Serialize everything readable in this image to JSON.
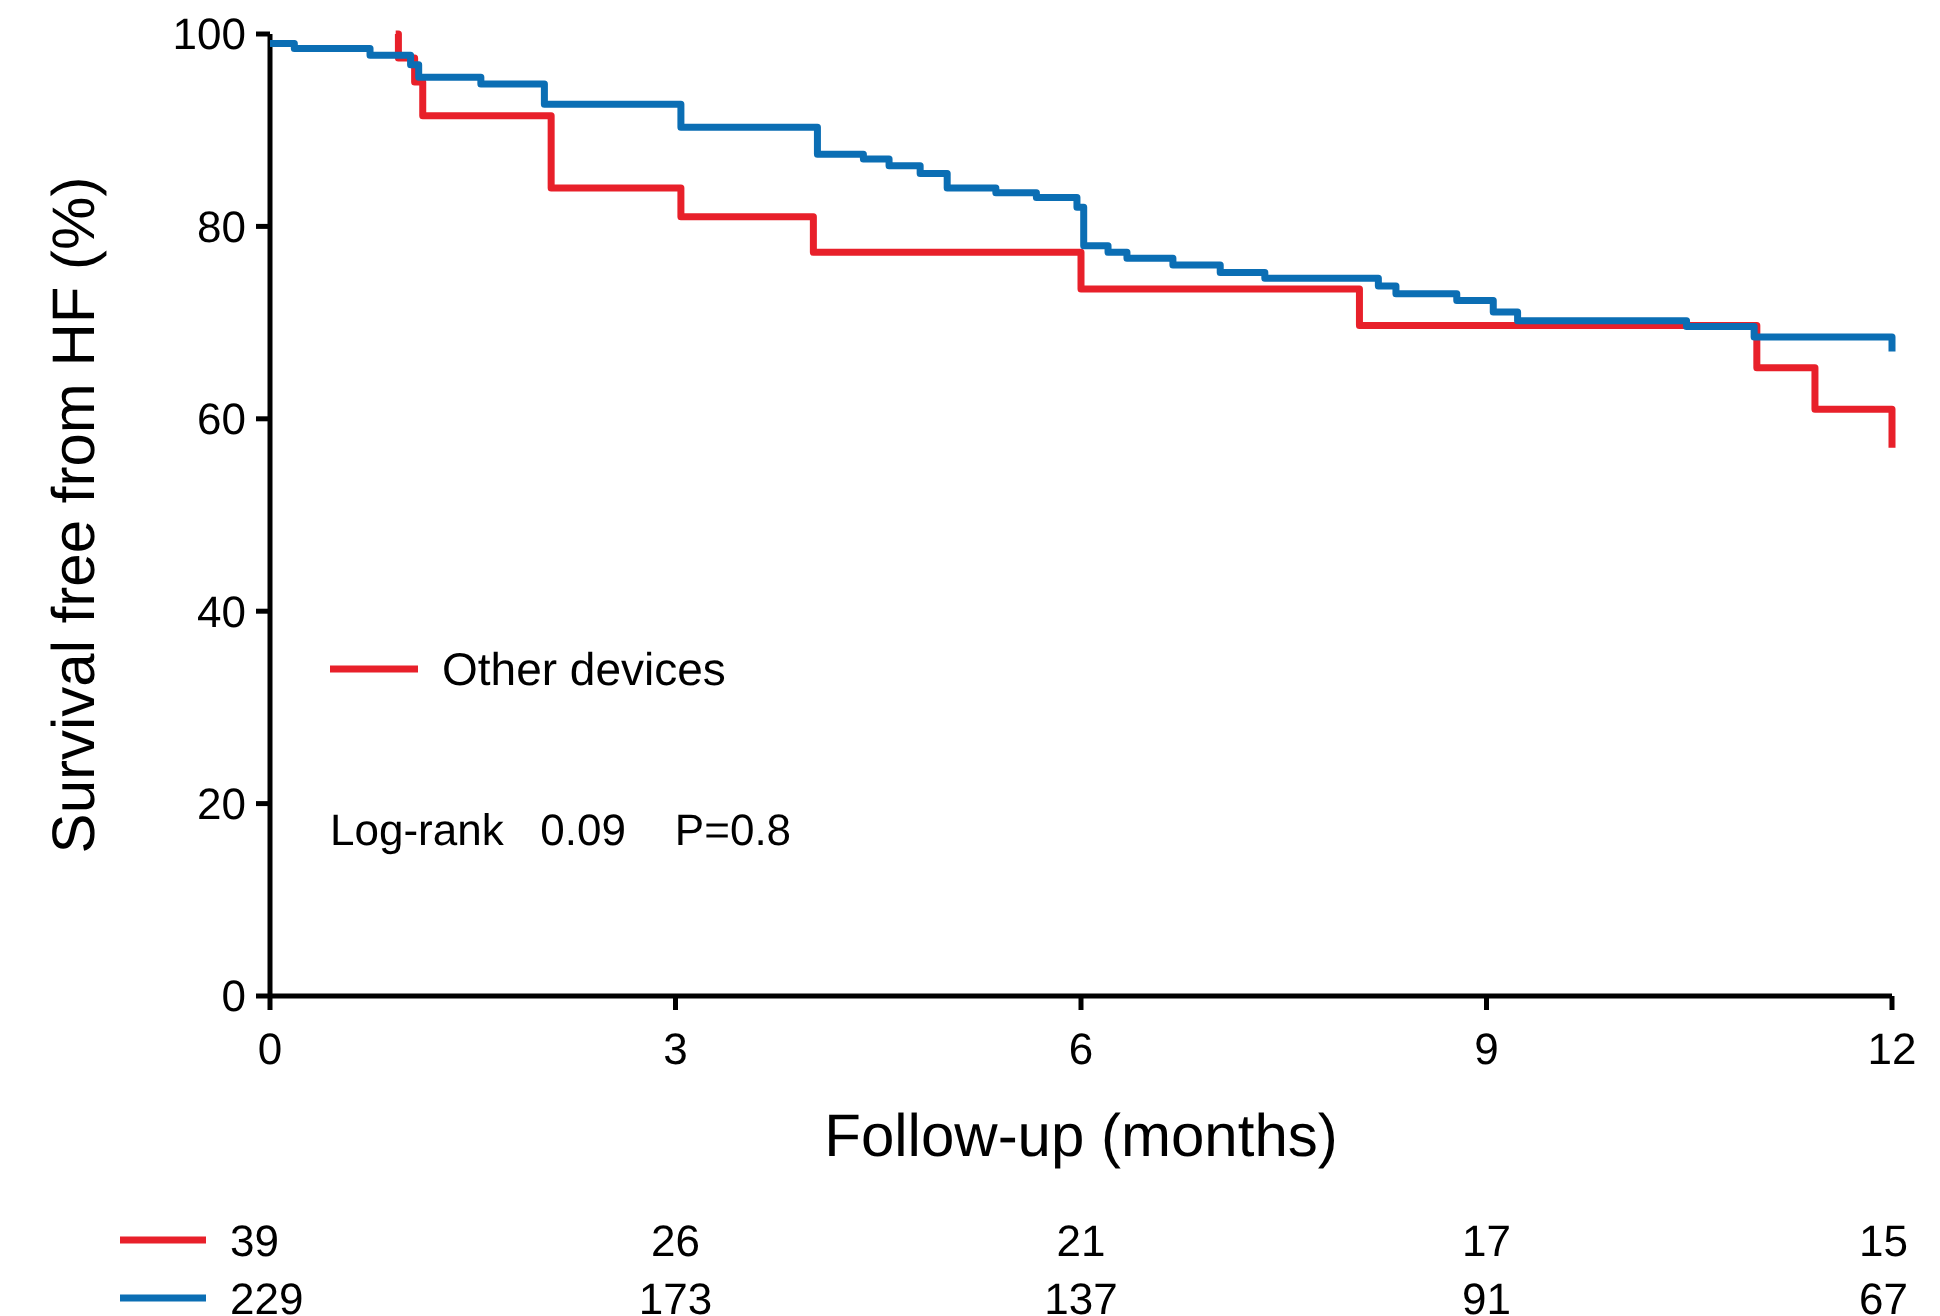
{
  "chart_data": {
    "type": "step",
    "xlabel": "Follow-up (months)",
    "ylabel": "Survival free from HF (%)",
    "xlim": [
      0,
      12
    ],
    "xticks": [
      0,
      3,
      6,
      9,
      12
    ],
    "ylim": [
      0,
      100
    ],
    "yticks": [
      0,
      20,
      40,
      60,
      80,
      100
    ],
    "grid": false,
    "legend": "left",
    "series": [
      {
        "name": "Other devices",
        "color": "#e8202a",
        "x": [
          0.93,
          0.95,
          1.07,
          1.13,
          2.08,
          3.04,
          4.02,
          6.0,
          8.06,
          11.0,
          11.43,
          12.0
        ],
        "values": [
          100,
          97.5,
          95,
          91.5,
          84,
          81,
          77.3,
          73.5,
          69.7,
          65.3,
          61,
          57
        ]
      },
      {
        "color": "#0b6eb4",
        "x": [
          0,
          0.18,
          0.74,
          1.04,
          1.1,
          1.56,
          2.03,
          3.04,
          4.05,
          4.39,
          4.58,
          4.81,
          5.01,
          5.37,
          5.67,
          5.97,
          6.02,
          6.2,
          6.34,
          6.68,
          7.03,
          7.36,
          8.2,
          8.33,
          8.78,
          9.05,
          9.23,
          10.48,
          10.98,
          12.0
        ],
        "values": [
          99,
          98.5,
          97.8,
          96.8,
          95.5,
          94.8,
          92.7,
          90.3,
          87.5,
          87,
          86.3,
          85.5,
          84,
          83.5,
          83,
          82,
          78,
          77.3,
          76.7,
          76,
          75.2,
          74.6,
          73.8,
          73,
          72.3,
          71.1,
          70.2,
          69.6,
          68.5,
          67
        ]
      }
    ],
    "annotations": [
      "Log-rank   0.09    P=0.8",
      "39",
      "26",
      "21",
      "17",
      "15",
      "229",
      "173",
      "137",
      "91",
      "67"
    ]
  }
}
